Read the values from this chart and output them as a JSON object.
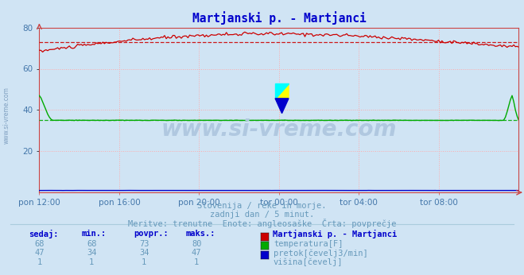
{
  "title": "Martjanski p. - Martjanci",
  "title_color": "#0000cc",
  "bg_color": "#d0e4f4",
  "plot_bg_color": "#d0e4f4",
  "xlabel_ticks": [
    "pon 12:00",
    "pon 16:00",
    "pon 20:00",
    "tor 00:00",
    "tor 04:00",
    "tor 08:00"
  ],
  "tick_positions": [
    0.0,
    0.1667,
    0.3333,
    0.5,
    0.6667,
    0.8333
  ],
  "ylim": [
    0,
    80
  ],
  "yticks": [
    20,
    40,
    60,
    80
  ],
  "grid_color": "#ffaaaa",
  "text_lines": [
    "Slovenija / reke in morje.",
    "zadnji dan / 5 minut.",
    "Meritve: trenutne  Enote: angleosaške  Črta: povprečje"
  ],
  "text_color": "#6699bb",
  "watermark": "www.si-vreme.com",
  "watermark_color": "#b0c8e0",
  "legend_title": "Martjanski p. - Martjanci",
  "legend_title_color": "#0000cc",
  "legend_items": [
    {
      "label": "temperatura[F]",
      "color": "#cc0000"
    },
    {
      "label": "pretok[čevelj3/min]",
      "color": "#00aa00"
    },
    {
      "label": "višina[čevelj]",
      "color": "#0000cc"
    }
  ],
  "table_headers": [
    "sedaj:",
    "min.:",
    "povpr.:",
    "maks.:"
  ],
  "table_data": [
    [
      68,
      68,
      73,
      80
    ],
    [
      47,
      34,
      34,
      47
    ],
    [
      1,
      1,
      1,
      1
    ]
  ],
  "temp_avg": 73,
  "flow_avg": 35,
  "axis_label_color": "#4477aa",
  "tick_color": "#cc4444"
}
